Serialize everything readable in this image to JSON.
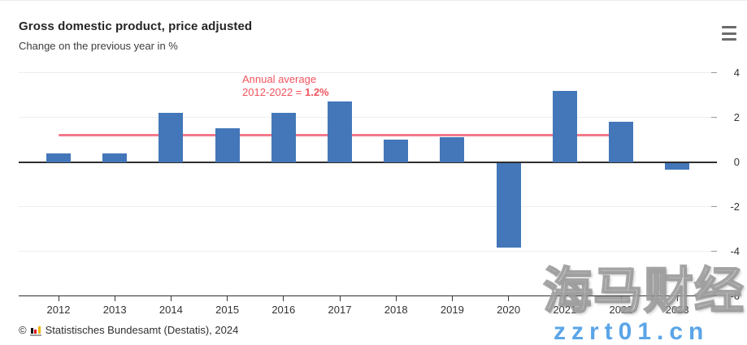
{
  "header": {
    "title": "Gross domestic product, price adjusted",
    "subtitle": "Change on the previous year in %",
    "menu_icon": "hamburger-menu-icon"
  },
  "annotation": {
    "line1": "Annual average",
    "line2_prefix": "2012-2022 = ",
    "line2_value": "1.2%"
  },
  "chart_data": {
    "type": "bar",
    "title": "Gross domestic product, price adjusted",
    "subtitle": "Change on the previous year in %",
    "categories": [
      "2012",
      "2013",
      "2014",
      "2015",
      "2016",
      "2017",
      "2018",
      "2019",
      "2020",
      "2021",
      "2022",
      "2023"
    ],
    "values": [
      0.4,
      0.4,
      2.2,
      1.5,
      2.2,
      2.7,
      1.0,
      1.1,
      -3.8,
      3.2,
      1.8,
      -0.3
    ],
    "ylabel": "Change on the previous year in %",
    "ylim": [
      -6,
      4
    ],
    "yticks": [
      4,
      2,
      0,
      -2,
      -4,
      -6
    ],
    "grid": true,
    "legend": "none",
    "bar_color": "#4377b9",
    "average_line": {
      "label": "Annual average 2012-2022 = 1.2%",
      "value": 1.2,
      "span": [
        "2012",
        "2022"
      ],
      "color": "#f4798a"
    }
  },
  "footer": {
    "copyright": "©",
    "source": "Statistisches Bundesamt (Destatis), 2024",
    "logo": "destatis-bar-chart-logo"
  },
  "watermark": {
    "line1": "海马财经",
    "line2": "zzrt01.cn"
  },
  "colors": {
    "bar": "#4377b9",
    "zero_axis": "#2f2f2f",
    "gridline": "#ededed",
    "annotation_text": "#f1545e",
    "average_line": "#f4798a",
    "watermark_blue": "#5ba5e8"
  }
}
